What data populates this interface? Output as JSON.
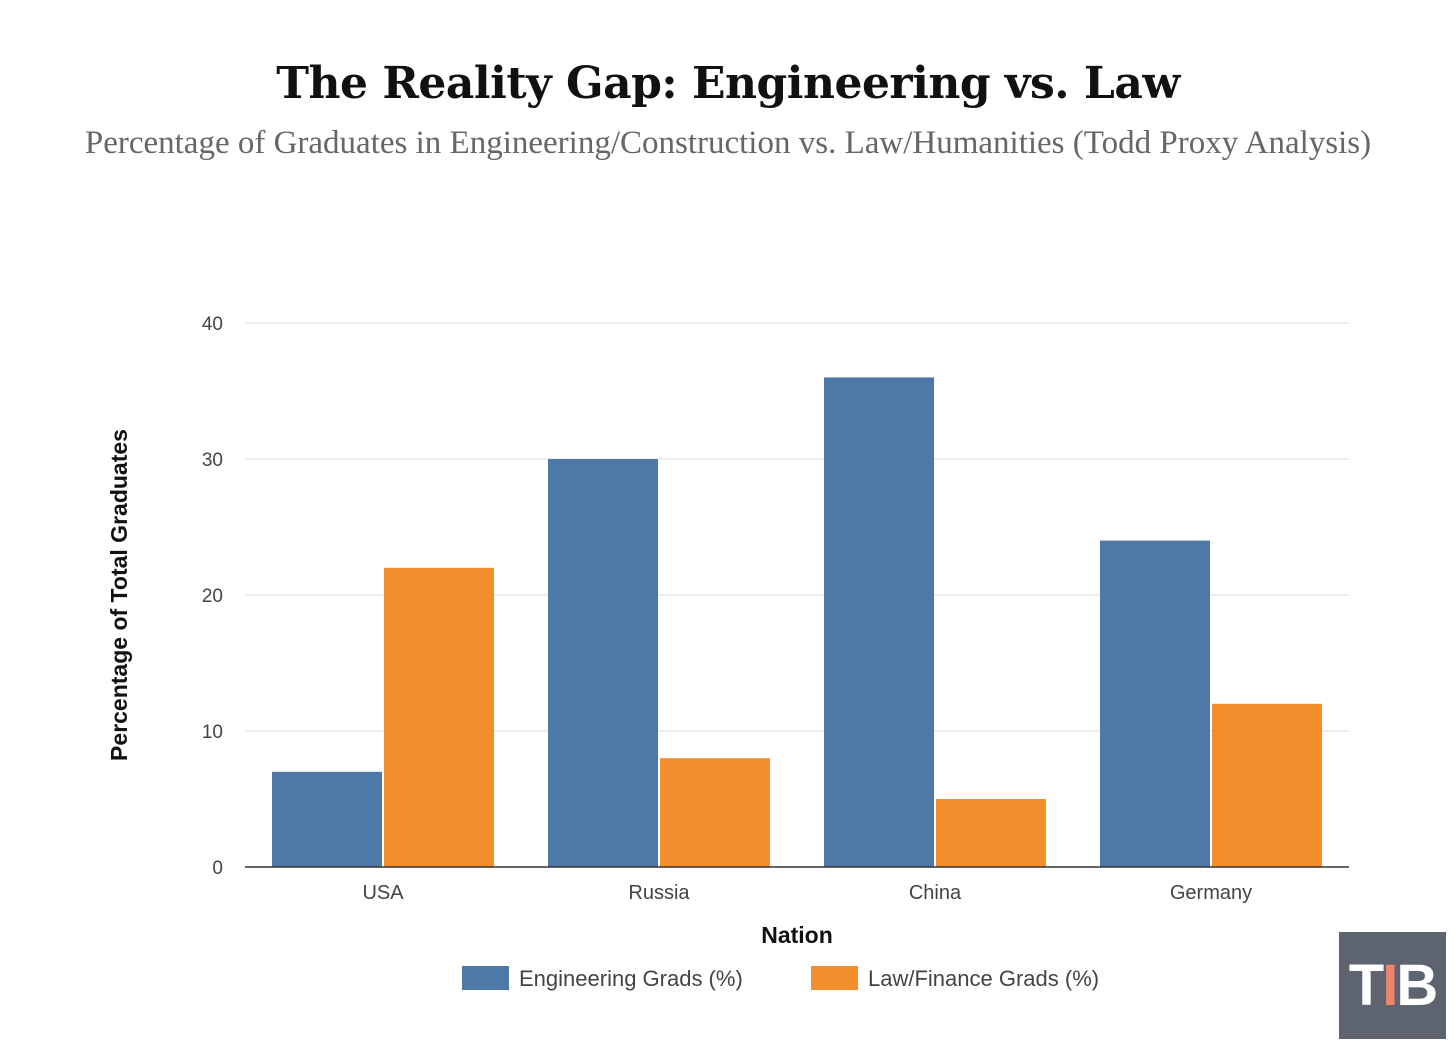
{
  "chart_data": {
    "type": "bar",
    "title": "The Reality Gap: Engineering vs. Law",
    "subtitle": "Percentage of Graduates in Engineering/Construction vs. Law/Humanities (Todd Proxy Analysis)",
    "xlabel": "Nation",
    "ylabel": "Percentage of Total Graduates",
    "categories": [
      "USA",
      "Russia",
      "China",
      "Germany"
    ],
    "series": [
      {
        "name": "Engineering Grads (%)",
        "values": [
          7,
          30,
          36,
          24
        ],
        "color": "#4e79a7"
      },
      {
        "name": "Law/Finance Grads (%)",
        "values": [
          22,
          8,
          5,
          12
        ],
        "color": "#f28e2b"
      }
    ],
    "ylim": [
      0,
      40
    ],
    "yticks": [
      0,
      10,
      20,
      30,
      40
    ],
    "grid": true,
    "legend": "bottom-center"
  },
  "logo": {
    "left": "T",
    "middle": "I",
    "right": "B"
  }
}
